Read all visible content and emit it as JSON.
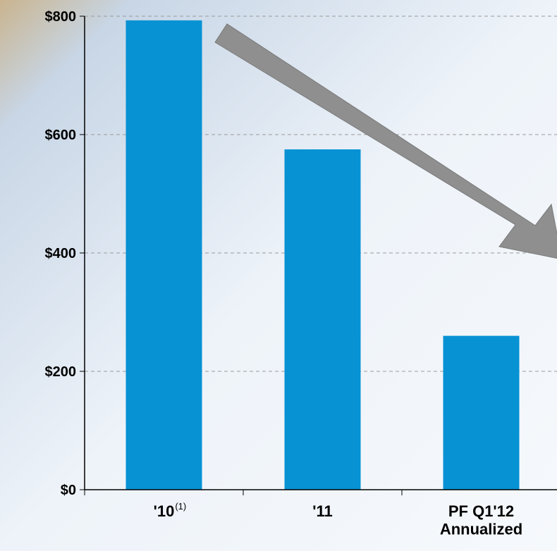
{
  "chart_data": {
    "type": "bar",
    "categories": [
      "'10",
      "'11",
      "PF Q1'12\nAnnualized"
    ],
    "category_notes": [
      "(1)",
      null,
      null
    ],
    "values": [
      793,
      575,
      260
    ],
    "color": "#0792d4",
    "ylim": [
      0,
      800
    ],
    "yticks": [
      {
        "value": 0,
        "label": "$0"
      },
      {
        "value": 200,
        "label": "$200"
      },
      {
        "value": 400,
        "label": "$400"
      },
      {
        "value": 600,
        "label": "$600"
      },
      {
        "value": 800,
        "label": "$800"
      }
    ],
    "grid": true
  }
}
